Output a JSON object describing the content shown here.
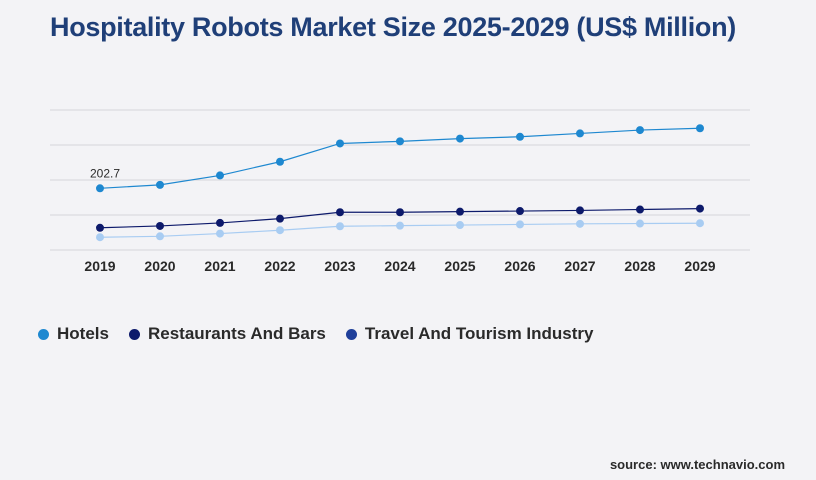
{
  "title": "Hospitality Robots Market Size 2025-2029 (US$ Million)",
  "source": "source: www.technavio.com",
  "chart_data": {
    "type": "line",
    "x": [
      "2019",
      "2020",
      "2021",
      "2022",
      "2023",
      "2024",
      "2025",
      "2026",
      "2027",
      "2028",
      "2029"
    ],
    "ylim": [
      0,
      460
    ],
    "grid": true,
    "legend_position": "bottom-left",
    "annotations": [
      {
        "series": "Hotels",
        "x": "2019",
        "text": "202.7"
      }
    ],
    "series": [
      {
        "name": "Hotels",
        "color": "#1e88d0",
        "values": [
          202.7,
          214,
          245,
          290,
          350,
          357,
          366,
          372,
          383,
          394,
          400
        ]
      },
      {
        "name": "Restaurants And Bars",
        "color": "#0d1a6b",
        "values": [
          73,
          79,
          89,
          103,
          124,
          124,
          126,
          128,
          130,
          133,
          136
        ]
      },
      {
        "name": "Travel And Tourism Industry",
        "color": "#a8ccf2",
        "values": [
          42,
          45,
          54,
          65,
          78,
          80,
          82,
          84,
          86,
          87,
          88
        ]
      }
    ]
  },
  "legend": [
    {
      "label": "Hotels",
      "color": "#1e88d0"
    },
    {
      "label": "Restaurants And Bars",
      "color": "#0d1a6b"
    },
    {
      "label": "Travel And Tourism Industry",
      "color": "#1f3f9a"
    }
  ]
}
